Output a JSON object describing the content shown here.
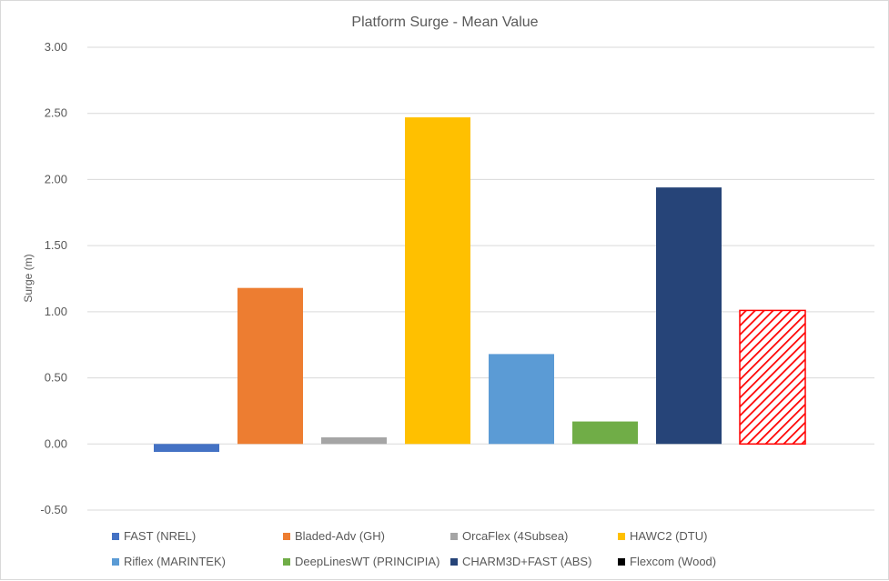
{
  "chart_data": {
    "type": "bar",
    "title": "Platform Surge - Mean Value",
    "xlabel": "",
    "ylabel": "Surge (m)",
    "ylim": [
      -0.5,
      3.0
    ],
    "yticks": [
      "3.00",
      "2.50",
      "2.00",
      "1.50",
      "1.00",
      "0.50",
      "0.00",
      "-0.50"
    ],
    "ytick_values": [
      3.0,
      2.5,
      2.0,
      1.5,
      1.0,
      0.5,
      0.0,
      -0.5
    ],
    "grid": true,
    "legend_position": "bottom",
    "series": [
      {
        "name": "FAST (NREL)",
        "value": -0.06,
        "color": "#4472c4",
        "pattern": "solid"
      },
      {
        "name": "Bladed-Adv (GH)",
        "value": 1.18,
        "color": "#ed7d31",
        "pattern": "solid"
      },
      {
        "name": "OrcaFlex (4Subsea)",
        "value": 0.05,
        "color": "#a5a5a5",
        "pattern": "solid"
      },
      {
        "name": "HAWC2 (DTU)",
        "value": 2.47,
        "color": "#ffc000",
        "pattern": "solid"
      },
      {
        "name": "Riflex (MARINTEK)",
        "value": 0.68,
        "color": "#5b9bd5",
        "pattern": "solid"
      },
      {
        "name": "DeepLinesWT (PRINCIPIA)",
        "value": 0.17,
        "color": "#70ad47",
        "pattern": "solid"
      },
      {
        "name": "CHARM3D+FAST (ABS)",
        "value": 1.94,
        "color": "#264478",
        "pattern": "solid"
      },
      {
        "name": "Flexcom (Wood)",
        "value": 1.01,
        "color": "#ff0000",
        "pattern": "hatched",
        "legend_color": "#000000"
      }
    ]
  }
}
